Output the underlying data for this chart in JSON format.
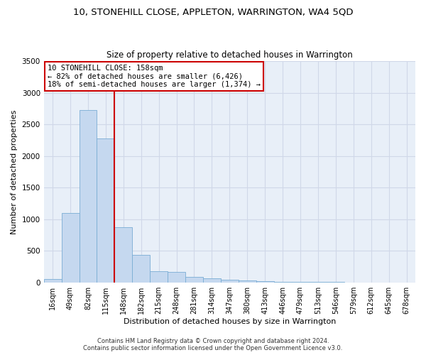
{
  "title": "10, STONEHILL CLOSE, APPLETON, WARRINGTON, WA4 5QD",
  "subtitle": "Size of property relative to detached houses in Warrington",
  "xlabel": "Distribution of detached houses by size in Warrington",
  "ylabel": "Number of detached properties",
  "categories": [
    "16sqm",
    "49sqm",
    "82sqm",
    "115sqm",
    "148sqm",
    "182sqm",
    "215sqm",
    "248sqm",
    "281sqm",
    "314sqm",
    "347sqm",
    "380sqm",
    "413sqm",
    "446sqm",
    "479sqm",
    "513sqm",
    "546sqm",
    "579sqm",
    "612sqm",
    "645sqm",
    "678sqm"
  ],
  "values": [
    50,
    1100,
    2730,
    2280,
    870,
    430,
    175,
    165,
    90,
    60,
    45,
    30,
    20,
    10,
    5,
    5,
    3,
    2,
    1,
    0,
    0
  ],
  "bar_color": "#c5d8ef",
  "bar_edge_color": "#7aadd4",
  "vline_x_index": 3.5,
  "vline_color": "#cc0000",
  "annotation_line1": "10 STONEHILL CLOSE: 158sqm",
  "annotation_line2": "← 82% of detached houses are smaller (6,426)",
  "annotation_line3": "18% of semi-detached houses are larger (1,374) →",
  "annotation_box_color": "#cc0000",
  "ylim": [
    0,
    3500
  ],
  "yticks": [
    0,
    500,
    1000,
    1500,
    2000,
    2500,
    3000,
    3500
  ],
  "footer_line1": "Contains HM Land Registry data © Crown copyright and database right 2024.",
  "footer_line2": "Contains public sector information licensed under the Open Government Licence v3.0.",
  "bg_color": "#e8eff8",
  "grid_color": "#d0d8e8",
  "title_fontsize": 9.5,
  "subtitle_fontsize": 8.5,
  "tick_fontsize": 7,
  "ylabel_fontsize": 8,
  "xlabel_fontsize": 8,
  "footer_fontsize": 6,
  "annotation_fontsize": 7.5
}
